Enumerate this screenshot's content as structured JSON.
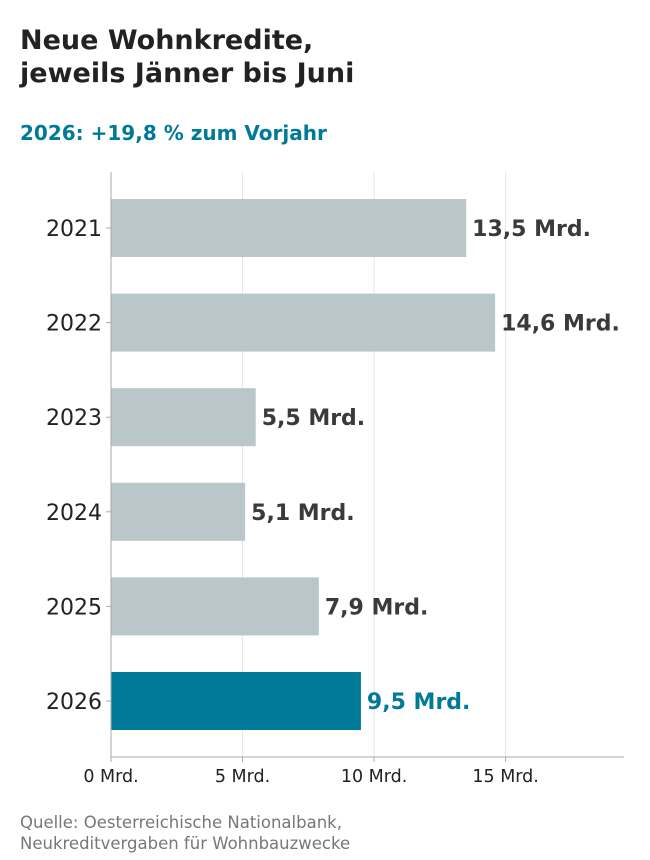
{
  "title_lines": [
    "Neue Wohnkredite,",
    "jeweils Jänner bis Juni"
  ],
  "subtitle": "2026: +19,8 % zum Vorjahr",
  "source_lines": [
    "Quelle: Oesterreichische Nationalbank,",
    "Neukreditvergaben für Wohnbauzwecke"
  ],
  "colors": {
    "bar_default": "#B9C6CA",
    "bar_highlight": "#007A99",
    "label_default": "#3A3A3A",
    "label_highlight": "#007A99",
    "text": "#222222",
    "grid": "#E6E6E6",
    "axis": "#AAAAAA",
    "source": "#777777"
  },
  "chart_data": {
    "type": "bar",
    "orientation": "horizontal",
    "categories": [
      "2021",
      "2022",
      "2023",
      "2024",
      "2025",
      "2026"
    ],
    "values": [
      13.5,
      14.6,
      5.5,
      5.1,
      7.9,
      9.5
    ],
    "value_labels": [
      "13,5 Mrd.",
      "14,6 Mrd.",
      "5,5 Mrd.",
      "5,1 Mrd.",
      "7,9 Mrd.",
      "9,5 Mrd."
    ],
    "highlight_category": "2026",
    "xlim": [
      0,
      19.5
    ],
    "xticks": [
      0,
      5,
      10,
      15
    ],
    "xtick_labels": [
      "0 Mrd.",
      "5 Mrd.",
      "10 Mrd.",
      "15 Mrd."
    ],
    "grid": true,
    "xlabel": "",
    "ylabel": ""
  }
}
